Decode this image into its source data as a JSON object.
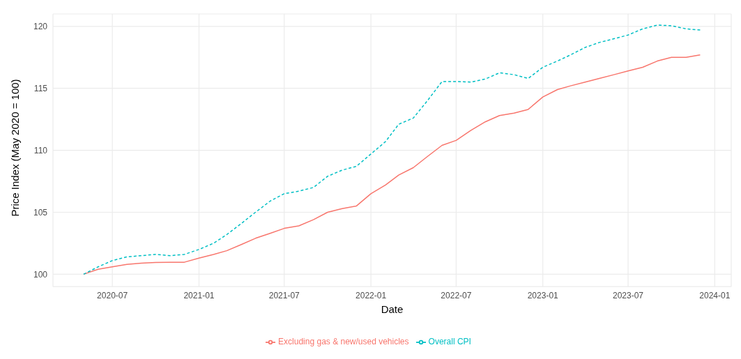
{
  "chart_data": {
    "type": "line",
    "xlabel": "Date",
    "ylabel": "Price Index (May 2020 = 100)",
    "x": [
      "2020-05",
      "2020-06",
      "2020-07",
      "2020-08",
      "2020-09",
      "2020-10",
      "2020-11",
      "2020-12",
      "2021-01",
      "2021-02",
      "2021-03",
      "2021-04",
      "2021-05",
      "2021-06",
      "2021-07",
      "2021-08",
      "2021-09",
      "2021-10",
      "2021-11",
      "2021-12",
      "2022-01",
      "2022-02",
      "2022-03",
      "2022-04",
      "2022-05",
      "2022-06",
      "2022-07",
      "2022-08",
      "2022-09",
      "2022-10",
      "2022-11",
      "2022-12",
      "2023-01",
      "2023-02",
      "2023-03",
      "2023-04",
      "2023-05",
      "2023-06",
      "2023-07",
      "2023-08",
      "2023-09",
      "2023-10",
      "2023-11",
      "2023-12"
    ],
    "series": [
      {
        "name": "Excluding gas & new/used vehicles",
        "color": "#f8766d",
        "line_style": "solid",
        "values": [
          100,
          100.4,
          100.6,
          100.8,
          100.9,
          100.95,
          100.96,
          100.97,
          101.3,
          101.6,
          101.9,
          102.4,
          102.9,
          103.3,
          103.7,
          103.9,
          104.4,
          105.0,
          105.3,
          105.5,
          106.5,
          107.2,
          108.0,
          108.6,
          109.5,
          110.4,
          110.8,
          111.6,
          112.3,
          112.8,
          113.0,
          113.3,
          114.3,
          114.9,
          115.2,
          115.5,
          115.8,
          116.1,
          116.4,
          116.7,
          117.2,
          117.5,
          117.5,
          117.7
        ]
      },
      {
        "name": "Overall CPI",
        "color": "#00bfc4",
        "line_style": "dashed",
        "values": [
          100,
          100.6,
          101.1,
          101.4,
          101.5,
          101.6,
          101.5,
          101.6,
          102.0,
          102.5,
          103.2,
          104.1,
          105.0,
          105.9,
          106.5,
          106.7,
          107.0,
          107.9,
          108.4,
          108.7,
          109.7,
          110.7,
          112.1,
          112.6,
          114.0,
          115.55,
          115.55,
          115.5,
          115.75,
          116.25,
          116.1,
          115.8,
          116.7,
          117.2,
          117.7,
          118.3,
          118.7,
          119.0,
          119.3,
          119.8,
          120.1,
          120.05,
          119.8,
          119.7
        ]
      }
    ],
    "xlim": [
      "2020-02-26",
      "2024-02-05"
    ],
    "xticks": [
      {
        "value": "2020-07",
        "label": "2020-07"
      },
      {
        "value": "2021-01",
        "label": "2021-01"
      },
      {
        "value": "2021-07",
        "label": "2021-07"
      },
      {
        "value": "2022-01",
        "label": "2022-01"
      },
      {
        "value": "2022-07",
        "label": "2022-07"
      },
      {
        "value": "2023-01",
        "label": "2023-01"
      },
      {
        "value": "2023-07",
        "label": "2023-07"
      },
      {
        "value": "2024-01",
        "label": "2024-01"
      }
    ],
    "ylim": [
      99,
      121
    ],
    "yticks": [
      100,
      105,
      110,
      115,
      120
    ],
    "grid": true,
    "legend": "bottom",
    "marker": "none"
  }
}
